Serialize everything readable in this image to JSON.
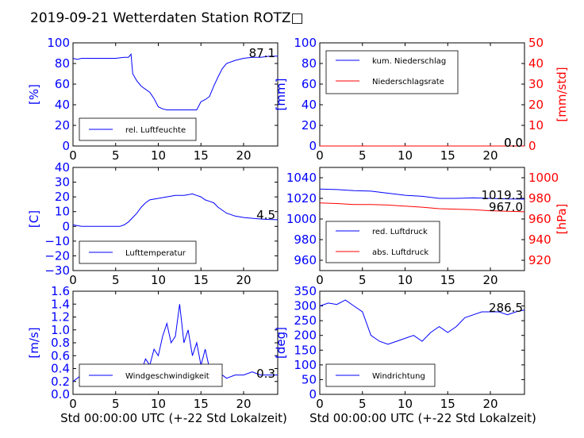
{
  "title": "2019-09-21 Wetterdaten Station ROTZ□",
  "xlabel": "Std 00:00:00 UTC (+-22 Std Lokalzeit)",
  "colors": {
    "blue": "#0000ff",
    "red": "#ff0000",
    "black": "#000000"
  },
  "chart_data": [
    {
      "id": "humidity",
      "type": "line",
      "xlim": [
        0,
        24
      ],
      "ylim": [
        0,
        100
      ],
      "xticks": [
        "0",
        "5",
        "10",
        "15",
        "20"
      ],
      "yticks": [
        "0",
        "20",
        "40",
        "60",
        "80",
        "100"
      ],
      "ylabel": "[%]",
      "ylabel_color": "#0000ff",
      "series": [
        {
          "name": "rel. Luftfeuchte",
          "color": "#0000ff",
          "x": [
            0,
            0.5,
            1,
            2,
            3,
            4,
            5,
            6,
            6.5,
            6.8,
            7,
            7.5,
            8,
            9,
            9.5,
            10,
            10.5,
            11,
            12,
            13,
            14,
            14.5,
            15,
            15.5,
            16,
            16.5,
            17,
            17.5,
            18,
            19,
            20,
            21,
            22,
            23,
            24
          ],
          "y": [
            85,
            84,
            85,
            85,
            85,
            85,
            85,
            86,
            86,
            89,
            70,
            63,
            58,
            52,
            46,
            38,
            36,
            35,
            35,
            35,
            35,
            35,
            43,
            45,
            48,
            58,
            67,
            75,
            80,
            83,
            85,
            86,
            86,
            87,
            87.1
          ]
        }
      ],
      "value_label": "87.1",
      "legend": "lower-left"
    },
    {
      "id": "precip",
      "type": "line",
      "xlim": [
        0,
        24
      ],
      "ylim": [
        0,
        100
      ],
      "ylim_right": [
        0,
        50
      ],
      "xticks": [
        "0",
        "5",
        "10",
        "15",
        "20"
      ],
      "yticks": [
        "0",
        "20",
        "40",
        "60",
        "80",
        "100"
      ],
      "yticks_right": [
        "0",
        "10",
        "20",
        "30",
        "40",
        "50"
      ],
      "ylabel": "[mm]",
      "ylabel_color": "#0000ff",
      "ylabel_right": "[mm/std]",
      "ylabel_right_color": "#ff0000",
      "series": [
        {
          "name": "kum. Niederschlag",
          "color": "#0000ff",
          "x": [
            0,
            24
          ],
          "y": [
            0,
            0
          ]
        },
        {
          "name": "Niederschlagsrate",
          "color": "#ff0000",
          "x": [
            0,
            24
          ],
          "y": [
            0,
            0
          ]
        }
      ],
      "value_labels": [
        "0.0",
        "0.0"
      ],
      "legend": "upper-left"
    },
    {
      "id": "temperature",
      "type": "line",
      "xlim": [
        0,
        24
      ],
      "ylim": [
        -30,
        40
      ],
      "xticks": [
        "0",
        "5",
        "10",
        "15",
        "20"
      ],
      "yticks": [
        "−30",
        "−20",
        "−10",
        "0",
        "10",
        "20",
        "30",
        "40"
      ],
      "ylabel": "[C]",
      "ylabel_color": "#0000ff",
      "series": [
        {
          "name": "Lufttemperatur",
          "color": "#0000ff",
          "x": [
            0,
            1,
            2,
            3,
            4,
            5,
            5.5,
            6,
            6.5,
            7,
            7.5,
            8,
            8.5,
            9,
            10,
            11,
            12,
            13,
            14,
            14.5,
            15,
            15.5,
            16,
            16.5,
            17,
            18,
            19,
            20,
            21,
            22,
            23,
            24
          ],
          "y": [
            1,
            0,
            0,
            0,
            0,
            0,
            0,
            1,
            3,
            6,
            9,
            13,
            16,
            18,
            19,
            20,
            21,
            21,
            22,
            21,
            20,
            18,
            17,
            16,
            13,
            9,
            7,
            6,
            5.5,
            5,
            4.7,
            4.5
          ]
        }
      ],
      "value_label": "4.5",
      "legend": "lower-left"
    },
    {
      "id": "pressure",
      "type": "line",
      "xlim": [
        0,
        24
      ],
      "ylim": [
        950,
        1050
      ],
      "ylim_right": [
        910,
        1010
      ],
      "xticks": [
        "0",
        "5",
        "10",
        "15",
        "20"
      ],
      "yticks": [
        "960",
        "980",
        "1000",
        "1020",
        "1040"
      ],
      "yticks_right": [
        "920",
        "940",
        "960",
        "980",
        "1000"
      ],
      "ylabel": "",
      "ylabel_right": "[hPa]",
      "ylabel_right_color": "#ff0000",
      "series": [
        {
          "name": "red. Luftdruck",
          "color": "#0000ff",
          "x": [
            0,
            2,
            4,
            6,
            8,
            10,
            12,
            14,
            16,
            18,
            20,
            22,
            24
          ],
          "y": [
            1029,
            1028.5,
            1027.5,
            1027,
            1025,
            1023,
            1022,
            1020,
            1020,
            1020.5,
            1020,
            1019.5,
            1019.3
          ]
        },
        {
          "name": "abs. Luftdruck",
          "color": "#ff0000",
          "x": [
            0,
            2,
            4,
            6,
            8,
            10,
            12,
            14,
            16,
            18,
            20,
            22,
            24
          ],
          "y": [
            975.5,
            975,
            974,
            974,
            973.5,
            972.5,
            971.5,
            970,
            969.5,
            969,
            968,
            967.5,
            967.0
          ],
          "axis": "right"
        }
      ],
      "value_labels": [
        "1019.3",
        "967.0"
      ],
      "legend": "lower-left"
    },
    {
      "id": "wind",
      "type": "line",
      "xlim": [
        0,
        24
      ],
      "ylim": [
        0,
        1.6
      ],
      "xticks": [
        "0",
        "5",
        "10",
        "15",
        "20"
      ],
      "yticks": [
        "0.0",
        "0.2",
        "0.4",
        "0.6",
        "0.8",
        "1.0",
        "1.2",
        "1.4",
        "1.6"
      ],
      "ylabel": "[m/s]",
      "ylabel_color": "#0000ff",
      "series": [
        {
          "name": "Windgeschwindigkeit",
          "color": "#0000ff",
          "x": [
            0,
            1,
            2,
            3,
            4,
            5,
            6,
            7,
            8,
            8.5,
            9,
            9.5,
            10,
            10.5,
            11,
            11.5,
            12,
            12.5,
            13,
            13.5,
            14,
            14.5,
            15,
            15.5,
            16,
            17,
            18,
            19,
            20,
            21,
            22,
            23,
            24
          ],
          "y": [
            0.2,
            0.3,
            0.3,
            0.35,
            0.35,
            0.3,
            0.25,
            0.2,
            0.35,
            0.55,
            0.45,
            0.7,
            0.6,
            0.9,
            1.1,
            0.8,
            0.9,
            1.4,
            0.8,
            1.0,
            0.6,
            0.8,
            0.45,
            0.7,
            0.4,
            0.35,
            0.25,
            0.3,
            0.3,
            0.35,
            0.3,
            0.3,
            0.3
          ]
        }
      ],
      "value_label": "0.3",
      "legend": "lower-left"
    },
    {
      "id": "direction",
      "type": "line",
      "xlim": [
        0,
        24
      ],
      "ylim": [
        0,
        350
      ],
      "xticks": [
        "0",
        "5",
        "10",
        "15",
        "20"
      ],
      "yticks": [
        "0",
        "50",
        "100",
        "150",
        "200",
        "250",
        "300",
        "350"
      ],
      "ylabel": "[deg]",
      "ylabel_color": "#0000ff",
      "series": [
        {
          "name": "Windrichtung",
          "color": "#0000ff",
          "x": [
            0,
            1,
            2,
            3,
            4,
            5,
            6,
            7,
            8,
            9,
            10,
            11,
            12,
            13,
            14,
            15,
            16,
            17,
            18,
            19,
            20,
            21,
            22,
            23,
            24
          ],
          "y": [
            300,
            310,
            305,
            320,
            300,
            280,
            200,
            180,
            170,
            180,
            190,
            200,
            180,
            210,
            230,
            210,
            230,
            260,
            270,
            280,
            280,
            280,
            270,
            280,
            286.5
          ]
        }
      ],
      "value_label": "286.5",
      "legend": "lower-left"
    }
  ]
}
